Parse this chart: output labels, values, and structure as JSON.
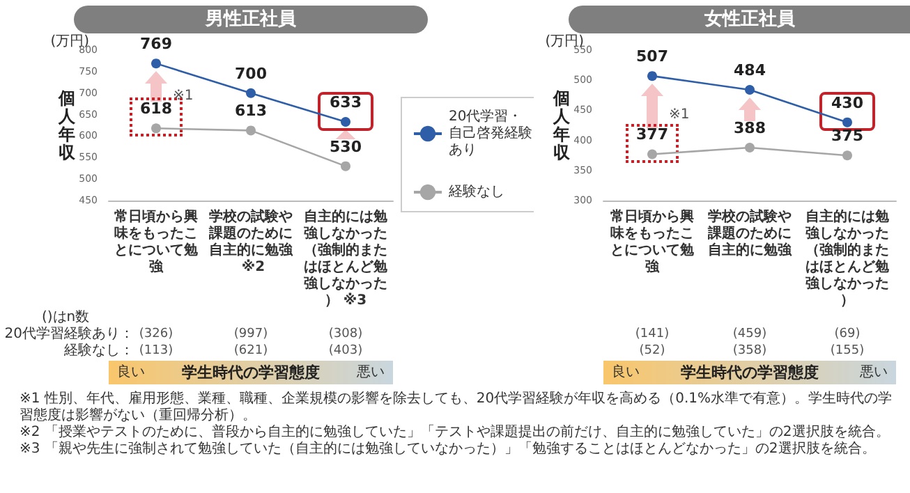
{
  "chart_data": [
    {
      "type": "line",
      "title": "男性正社員",
      "ylabel": "個人年収",
      "xlabel": "学生時代の学習態度",
      "categories": [
        "常日頃から興味をもったことについて勉強",
        "学校の試験や課題のために自主的に勉強 ※2",
        "自主的には勉強しなかった（強制的またはほとんど勉強しなかった） ※3"
      ],
      "series": [
        {
          "name": "20代学習・自己啓発経験あり",
          "color": "#2f5ea8",
          "values": [
            769,
            700,
            633
          ]
        },
        {
          "name": "経験なし",
          "color": "#a6a6a6",
          "values": [
            618,
            613,
            530
          ]
        }
      ],
      "ylim": [
        450,
        800
      ],
      "yticks": [
        450,
        500,
        550,
        600,
        650,
        700,
        750,
        800
      ],
      "data_labels": true,
      "marker": "circle",
      "line_style": "solid",
      "legend": "right",
      "grid": false,
      "annotations": [
        "※1",
        "(万円)",
        "()はn数",
        "20代学習経験あり：",
        "経験なし：",
        "(326)",
        "(997)",
        "(308)",
        "(113)",
        "(621)",
        "(403)",
        "良い",
        "悪い",
        "※1  性別、年代、雇用形態、業種、職種、企業規模の影響を除去しても、20代学習経験が年収を高める（0.1%水準で有意）。学生時代の学習態度は影響がない（重回帰分析）。",
        "※2 「授業やテストのために、普段から自主的に勉強していた」「テストや課題提出の前だけ、自主的に勉強していた」の2選択肢を統合。",
        "※3 「親や先生に強制されて勉強していた（自主的には勉強していなかった）」「勉強することはほとんどなかった」の2選択肢を統合。"
      ]
    },
    {
      "type": "line",
      "title": "女性正社員",
      "ylabel": "個人年収",
      "xlabel": "学生時代の学習態度",
      "categories": [
        "常日頃から興味をもったことについて勉強",
        "学校の試験や課題のために自主的に勉強",
        "自主的には勉強しなかった（強制的またはほとんど勉強しなかった）"
      ],
      "series": [
        {
          "color": "#2f5ea8",
          "values": [
            507,
            484,
            430
          ]
        },
        {
          "color": "#a6a6a6",
          "values": [
            377,
            388,
            375
          ]
        }
      ],
      "ylim": [
        300,
        550
      ],
      "yticks": [
        300,
        350,
        400,
        450,
        500,
        550
      ],
      "data_labels": true,
      "marker": "circle",
      "line_style": "solid",
      "grid": false,
      "annotations": [
        "※1",
        "(万円)",
        "(141)",
        "(459)",
        "(69)",
        "(52)",
        "(358)",
        "(155)",
        "良い",
        "悪い"
      ]
    }
  ]
}
